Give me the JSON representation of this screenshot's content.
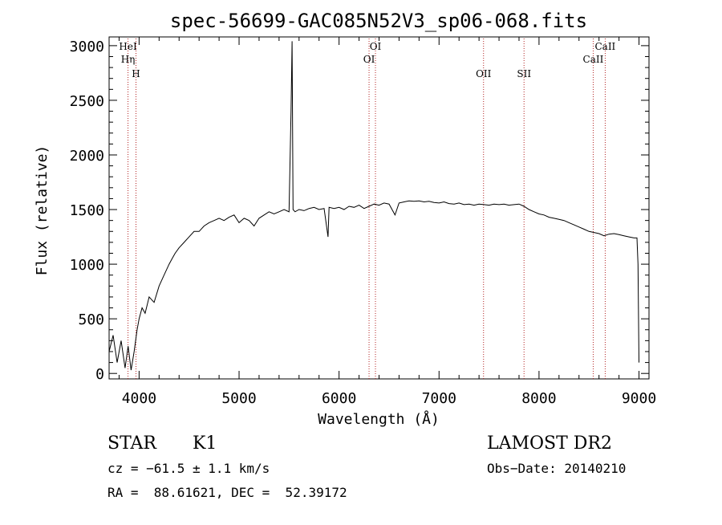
{
  "chart_data": {
    "type": "line",
    "title": "spec-56699-GAC085N52V3_sp06-068.fits",
    "xlabel": "Wavelength (Å)",
    "ylabel": "Flux (relative)",
    "xlim": [
      3700,
      9100
    ],
    "ylim": [
      -50,
      3080
    ],
    "xticks": [
      4000,
      5000,
      6000,
      7000,
      8000,
      9000
    ],
    "xtick_labels": [
      "4000",
      "5000",
      "6000",
      "7000",
      "8000",
      "9000"
    ],
    "yticks": [
      0,
      500,
      1000,
      1500,
      2000,
      2500,
      3000
    ],
    "ytick_labels": [
      "0",
      "500",
      "1000",
      "1500",
      "2000",
      "2500",
      "3000"
    ],
    "grid": false,
    "line_color": "#000000",
    "marker_color": "#b22222",
    "series": [
      {
        "x": [
          3700,
          3740,
          3780,
          3820,
          3860,
          3890,
          3920,
          3950,
          3980,
          4000,
          4030,
          4060,
          4100,
          4150,
          4200,
          4250,
          4300,
          4330,
          4360,
          4400,
          4450,
          4500,
          4550,
          4600,
          4650,
          4700,
          4750,
          4800,
          4850,
          4900,
          4950,
          5000,
          5050,
          5100,
          5150,
          5200,
          5250,
          5300,
          5350,
          5400,
          5450,
          5500,
          5520,
          5530,
          5540,
          5560,
          5600,
          5650,
          5700,
          5750,
          5800,
          5850,
          5890,
          5900,
          5950,
          6000,
          6050,
          6100,
          6150,
          6200,
          6250,
          6300,
          6350,
          6400,
          6450,
          6500,
          6560,
          6600,
          6650,
          6700,
          6750,
          6800,
          6850,
          6900,
          6950,
          7000,
          7050,
          7100,
          7150,
          7200,
          7250,
          7300,
          7350,
          7400,
          7450,
          7500,
          7550,
          7600,
          7650,
          7700,
          7750,
          7800,
          7850,
          7900,
          7950,
          8000,
          8050,
          8100,
          8150,
          8200,
          8250,
          8300,
          8350,
          8400,
          8450,
          8500,
          8550,
          8600,
          8650,
          8700,
          8750,
          8800,
          8850,
          8900,
          8950,
          8980,
          8990,
          9000
        ],
        "y": [
          200,
          350,
          100,
          300,
          50,
          250,
          30,
          200,
          400,
          500,
          600,
          550,
          700,
          650,
          800,
          900,
          1000,
          1050,
          1100,
          1150,
          1200,
          1250,
          1300,
          1300,
          1350,
          1380,
          1400,
          1420,
          1400,
          1430,
          1450,
          1380,
          1420,
          1400,
          1350,
          1420,
          1450,
          1480,
          1460,
          1480,
          1500,
          1480,
          2400,
          3040,
          1500,
          1480,
          1500,
          1490,
          1510,
          1520,
          1500,
          1510,
          1250,
          1520,
          1510,
          1520,
          1500,
          1530,
          1520,
          1540,
          1510,
          1530,
          1550,
          1540,
          1560,
          1550,
          1450,
          1560,
          1570,
          1580,
          1575,
          1580,
          1570,
          1575,
          1565,
          1560,
          1570,
          1555,
          1550,
          1560,
          1545,
          1550,
          1540,
          1550,
          1545,
          1540,
          1550,
          1545,
          1550,
          1540,
          1545,
          1550,
          1530,
          1500,
          1480,
          1460,
          1450,
          1430,
          1420,
          1410,
          1400,
          1380,
          1360,
          1340,
          1320,
          1300,
          1290,
          1280,
          1260,
          1275,
          1280,
          1270,
          1260,
          1250,
          1240,
          1240,
          1000,
          100
        ]
      }
    ],
    "annotations": [
      {
        "label": "HeI",
        "wavelength": 3889,
        "level": 1
      },
      {
        "label": "Hη",
        "wavelength": 3889,
        "level": 2
      },
      {
        "label": "H",
        "wavelength": 3969,
        "level": 3
      },
      {
        "label": "OI",
        "wavelength": 6364,
        "level": 1
      },
      {
        "label": "OI",
        "wavelength": 6300,
        "level": 2
      },
      {
        "label": "OII",
        "wavelength": 7445,
        "level": 3
      },
      {
        "label": "SII",
        "wavelength": 7850,
        "level": 3
      },
      {
        "label": "CaII",
        "wavelength": 8662,
        "level": 1
      },
      {
        "label": "CaII",
        "wavelength": 8542,
        "level": 2
      }
    ]
  },
  "footer": {
    "class_label": "STAR",
    "subclass_label": "K1",
    "survey_label": "LAMOST DR2",
    "cz_line": "cz = −61.5 ± 1.1 km/s",
    "obs_date_line": "Obs−Date: 20140210",
    "radec_line": "RA =  88.61621, DEC =  52.39172"
  }
}
